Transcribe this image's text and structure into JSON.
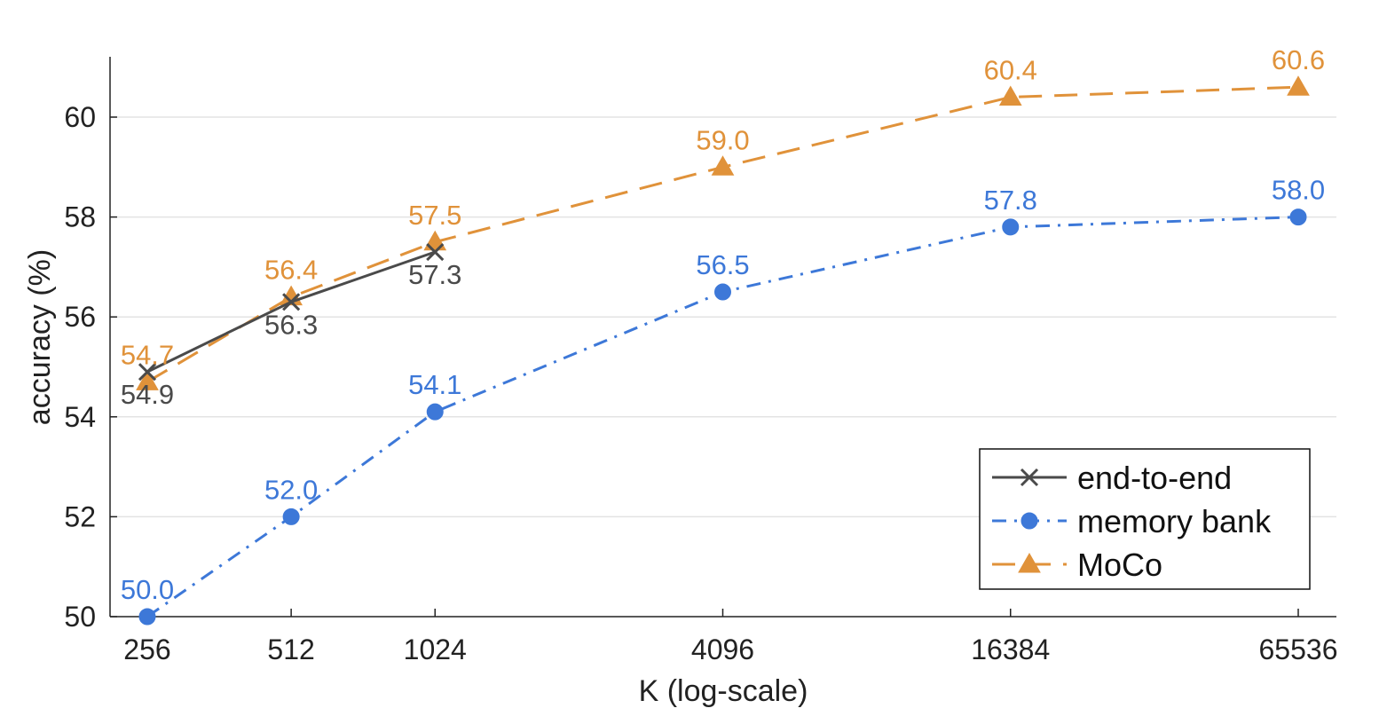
{
  "chart_data": {
    "type": "line",
    "x_scale": "log2",
    "x": [
      256,
      512,
      1024,
      4096,
      16384,
      65536
    ],
    "xticks": [
      "256",
      "512",
      "1024",
      "4096",
      "16384",
      "65536"
    ],
    "xlabel": "K (log-scale)",
    "ylabel": "accuracy (%)",
    "ylim": [
      50,
      61.2
    ],
    "yticks": [
      "50",
      "52",
      "54",
      "56",
      "58",
      "60"
    ],
    "grid": "horizontal",
    "legend_position": "bottom-right",
    "series": [
      {
        "name": "end-to-end",
        "color": "#4a4a4a",
        "marker": "x-cross",
        "dash": "solid",
        "x": [
          256,
          512,
          1024
        ],
        "values": [
          54.9,
          56.3,
          57.3
        ],
        "labels": [
          "54.9",
          "56.3",
          "57.3"
        ],
        "label_position": "below"
      },
      {
        "name": "memory bank",
        "color": "#3d78d8",
        "marker": "circle",
        "dash": "dash-dot",
        "x": [
          256,
          512,
          1024,
          4096,
          16384,
          65536
        ],
        "values": [
          50.0,
          52.0,
          54.1,
          56.5,
          57.8,
          58.0
        ],
        "labels": [
          "50.0",
          "52.0",
          "54.1",
          "56.5",
          "57.8",
          "58.0"
        ],
        "label_position": "above"
      },
      {
        "name": "MoCo",
        "color": "#e0923a",
        "marker": "triangle",
        "dash": "dashed",
        "x": [
          256,
          512,
          1024,
          4096,
          16384,
          65536
        ],
        "values": [
          54.7,
          56.4,
          57.5,
          59.0,
          60.4,
          60.6
        ],
        "labels": [
          "54.7",
          "56.4",
          "57.5",
          "59.0",
          "60.4",
          "60.6"
        ],
        "label_position": "above"
      }
    ]
  }
}
